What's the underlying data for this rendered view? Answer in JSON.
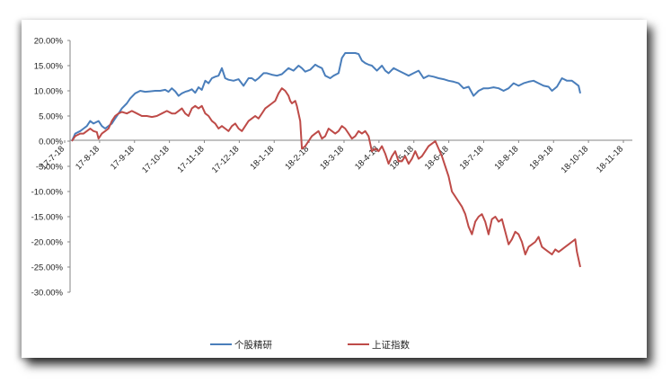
{
  "chart_data": {
    "type": "line",
    "title": "",
    "xlabel": "",
    "ylabel": "",
    "ylim": [
      -30,
      20
    ],
    "y_ticks": [
      "20.00%",
      "15.00%",
      "10.00%",
      "5.00%",
      "0.00%",
      "-5.00%",
      "-10.00%",
      "-15.00%",
      "-20.00%",
      "-25.00%",
      "-30.00%"
    ],
    "x_ticks": [
      "17-7-18",
      "17-8-18",
      "17-9-18",
      "17-10-18",
      "17-11-18",
      "17-12-18",
      "18-1-18",
      "18-2-18",
      "18-3-18",
      "18-4-18",
      "18-5-18",
      "18-6-18",
      "18-7-18",
      "18-8-18",
      "18-9-18",
      "18-10-18",
      "18-11-18"
    ],
    "grid": false,
    "legend_position": "bottom",
    "series": [
      {
        "name": "个股精研",
        "color": "#4a7ebb",
        "points": [
          [
            0,
            0.0
          ],
          [
            2,
            1.5
          ],
          [
            5,
            2.0
          ],
          [
            7,
            2.5
          ],
          [
            9,
            3.0
          ],
          [
            11,
            4.0
          ],
          [
            13,
            3.5
          ],
          [
            16,
            4.0
          ],
          [
            18,
            3.0
          ],
          [
            20,
            2.5
          ],
          [
            22,
            3.0
          ],
          [
            24,
            3.5
          ],
          [
            26,
            4.5
          ],
          [
            28,
            5.5
          ],
          [
            30,
            6.5
          ],
          [
            33,
            7.5
          ],
          [
            35,
            8.5
          ],
          [
            38,
            9.5
          ],
          [
            41,
            10.0
          ],
          [
            44,
            9.8
          ],
          [
            47,
            9.9
          ],
          [
            50,
            10.0
          ],
          [
            53,
            10.0
          ],
          [
            56,
            10.2
          ],
          [
            58,
            9.8
          ],
          [
            60,
            10.5
          ],
          [
            62,
            9.9
          ],
          [
            64,
            9.0
          ],
          [
            66,
            9.5
          ],
          [
            68,
            9.8
          ],
          [
            70,
            10.0
          ],
          [
            72,
            10.3
          ],
          [
            74,
            9.6
          ],
          [
            76,
            10.7
          ],
          [
            78,
            10.2
          ],
          [
            80,
            12.0
          ],
          [
            82,
            11.5
          ],
          [
            84,
            12.5
          ],
          [
            86,
            12.8
          ],
          [
            88,
            13.0
          ],
          [
            90,
            14.5
          ],
          [
            92,
            12.5
          ],
          [
            94,
            12.2
          ],
          [
            97,
            12.0
          ],
          [
            100,
            12.3
          ],
          [
            103,
            11.0
          ],
          [
            106,
            12.5
          ],
          [
            108,
            12.5
          ],
          [
            110,
            12.0
          ],
          [
            112,
            12.5
          ],
          [
            115,
            13.5
          ],
          [
            117,
            13.5
          ],
          [
            120,
            13.2
          ],
          [
            123,
            13.0
          ],
          [
            126,
            13.3
          ],
          [
            130,
            14.5
          ],
          [
            133,
            14.0
          ],
          [
            136,
            15.0
          ],
          [
            138,
            14.5
          ],
          [
            140,
            13.8
          ],
          [
            143,
            14.2
          ],
          [
            146,
            15.2
          ],
          [
            148,
            14.8
          ],
          [
            150,
            14.5
          ],
          [
            152,
            13.0
          ],
          [
            155,
            12.5
          ],
          [
            157,
            13.0
          ],
          [
            160,
            13.5
          ],
          [
            162,
            16.5
          ],
          [
            164,
            17.5
          ],
          [
            167,
            17.5
          ],
          [
            170,
            17.5
          ],
          [
            172,
            17.3
          ],
          [
            174,
            16.0
          ],
          [
            176,
            15.5
          ],
          [
            178,
            15.2
          ],
          [
            180,
            15.0
          ],
          [
            183,
            14.0
          ],
          [
            186,
            15.0
          ],
          [
            188,
            14.0
          ],
          [
            190,
            13.5
          ],
          [
            193,
            14.5
          ],
          [
            196,
            14.0
          ],
          [
            199,
            13.5
          ],
          [
            202,
            13.0
          ],
          [
            205,
            13.5
          ],
          [
            208,
            14.0
          ],
          [
            211,
            12.5
          ],
          [
            214,
            13.0
          ],
          [
            217,
            12.8
          ],
          [
            220,
            12.5
          ],
          [
            223,
            12.3
          ],
          [
            226,
            12.0
          ],
          [
            229,
            11.8
          ],
          [
            232,
            11.5
          ],
          [
            235,
            10.5
          ],
          [
            238,
            10.8
          ],
          [
            241,
            9.0
          ],
          [
            244,
            10.0
          ],
          [
            247,
            10.5
          ],
          [
            250,
            10.5
          ],
          [
            253,
            10.7
          ],
          [
            256,
            10.5
          ],
          [
            259,
            10.0
          ],
          [
            262,
            10.5
          ],
          [
            265,
            11.5
          ],
          [
            268,
            11.0
          ],
          [
            271,
            11.5
          ],
          [
            274,
            11.8
          ],
          [
            277,
            12.0
          ],
          [
            280,
            11.5
          ],
          [
            283,
            11.0
          ],
          [
            286,
            10.8
          ],
          [
            288,
            10.0
          ],
          [
            291,
            10.8
          ],
          [
            294,
            12.5
          ],
          [
            297,
            12.0
          ],
          [
            300,
            12.0
          ],
          [
            302,
            11.5
          ],
          [
            304,
            11.0
          ],
          [
            305,
            9.5
          ]
        ]
      },
      {
        "name": "上证指数",
        "color": "#be4b48",
        "points": [
          [
            0,
            0.0
          ],
          [
            2,
            1.0
          ],
          [
            5,
            1.5
          ],
          [
            7,
            1.5
          ],
          [
            9,
            2.0
          ],
          [
            11,
            2.5
          ],
          [
            13,
            2.0
          ],
          [
            15,
            1.8
          ],
          [
            16,
            0.5
          ],
          [
            18,
            1.5
          ],
          [
            20,
            2.0
          ],
          [
            22,
            2.5
          ],
          [
            24,
            4.0
          ],
          [
            26,
            5.0
          ],
          [
            28,
            5.5
          ],
          [
            30,
            5.8
          ],
          [
            33,
            5.5
          ],
          [
            36,
            6.0
          ],
          [
            39,
            5.5
          ],
          [
            42,
            5.0
          ],
          [
            45,
            5.0
          ],
          [
            48,
            4.8
          ],
          [
            51,
            5.0
          ],
          [
            54,
            5.5
          ],
          [
            57,
            6.0
          ],
          [
            60,
            5.5
          ],
          [
            62,
            5.5
          ],
          [
            64,
            6.0
          ],
          [
            66,
            6.5
          ],
          [
            68,
            5.5
          ],
          [
            70,
            5.0
          ],
          [
            72,
            6.5
          ],
          [
            74,
            7.0
          ],
          [
            76,
            6.5
          ],
          [
            78,
            7.0
          ],
          [
            80,
            5.5
          ],
          [
            82,
            5.0
          ],
          [
            84,
            4.0
          ],
          [
            86,
            3.5
          ],
          [
            88,
            2.5
          ],
          [
            90,
            3.0
          ],
          [
            92,
            2.5
          ],
          [
            94,
            2.0
          ],
          [
            96,
            3.0
          ],
          [
            98,
            3.5
          ],
          [
            100,
            2.5
          ],
          [
            102,
            2.0
          ],
          [
            104,
            3.0
          ],
          [
            106,
            4.0
          ],
          [
            108,
            4.5
          ],
          [
            110,
            5.0
          ],
          [
            112,
            4.5
          ],
          [
            114,
            5.5
          ],
          [
            116,
            6.5
          ],
          [
            118,
            7.0
          ],
          [
            120,
            7.5
          ],
          [
            122,
            8.0
          ],
          [
            124,
            9.5
          ],
          [
            126,
            10.5
          ],
          [
            128,
            10.0
          ],
          [
            130,
            9.0
          ],
          [
            131,
            8.0
          ],
          [
            132,
            7.5
          ],
          [
            134,
            8.0
          ],
          [
            135,
            7.0
          ],
          [
            137,
            4.0
          ],
          [
            138,
            -1.5
          ],
          [
            140,
            -1.0
          ],
          [
            142,
            0.0
          ],
          [
            144,
            1.0
          ],
          [
            146,
            1.5
          ],
          [
            148,
            2.0
          ],
          [
            150,
            0.5
          ],
          [
            152,
            1.0
          ],
          [
            154,
            2.5
          ],
          [
            156,
            2.0
          ],
          [
            158,
            1.5
          ],
          [
            160,
            2.0
          ],
          [
            162,
            3.0
          ],
          [
            164,
            2.5
          ],
          [
            166,
            1.5
          ],
          [
            168,
            0.5
          ],
          [
            170,
            1.0
          ],
          [
            172,
            2.0
          ],
          [
            174,
            1.5
          ],
          [
            176,
            2.0
          ],
          [
            178,
            1.0
          ],
          [
            180,
            -2.0
          ],
          [
            182,
            -1.5
          ],
          [
            184,
            -2.0
          ],
          [
            186,
            -1.0
          ],
          [
            188,
            -2.5
          ],
          [
            190,
            -4.5
          ],
          [
            192,
            -3.0
          ],
          [
            194,
            -2.0
          ],
          [
            196,
            -4.0
          ],
          [
            198,
            -4.0
          ],
          [
            200,
            -3.0
          ],
          [
            202,
            -4.5
          ],
          [
            204,
            -3.5
          ],
          [
            206,
            -2.0
          ],
          [
            208,
            -3.5
          ],
          [
            210,
            -3.0
          ],
          [
            212,
            -2.0
          ],
          [
            214,
            -1.0
          ],
          [
            216,
            -0.5
          ],
          [
            218,
            0.0
          ],
          [
            220,
            -1.5
          ],
          [
            222,
            -3.0
          ],
          [
            224,
            -5.0
          ],
          [
            226,
            -7.0
          ],
          [
            228,
            -10.0
          ],
          [
            230,
            -11.0
          ],
          [
            232,
            -12.0
          ],
          [
            234,
            -13.0
          ],
          [
            236,
            -14.5
          ],
          [
            238,
            -17.0
          ],
          [
            240,
            -18.5
          ],
          [
            242,
            -16.0
          ],
          [
            244,
            -15.0
          ],
          [
            246,
            -14.5
          ],
          [
            248,
            -16.0
          ],
          [
            250,
            -18.5
          ],
          [
            252,
            -15.5
          ],
          [
            254,
            -15.0
          ],
          [
            256,
            -16.0
          ],
          [
            258,
            -15.5
          ],
          [
            260,
            -18.0
          ],
          [
            262,
            -20.5
          ],
          [
            264,
            -19.5
          ],
          [
            266,
            -18.0
          ],
          [
            268,
            -18.5
          ],
          [
            270,
            -20.0
          ],
          [
            272,
            -22.5
          ],
          [
            274,
            -21.0
          ],
          [
            276,
            -20.5
          ],
          [
            278,
            -20.0
          ],
          [
            280,
            -19.0
          ],
          [
            282,
            -21.0
          ],
          [
            284,
            -21.5
          ],
          [
            286,
            -22.0
          ],
          [
            288,
            -22.5
          ],
          [
            290,
            -21.5
          ],
          [
            292,
            -22.0
          ],
          [
            294,
            -21.5
          ],
          [
            296,
            -21.0
          ],
          [
            298,
            -20.5
          ],
          [
            300,
            -20.0
          ],
          [
            302,
            -19.5
          ],
          [
            303,
            -22.0
          ],
          [
            305,
            -25.0
          ]
        ]
      }
    ]
  }
}
